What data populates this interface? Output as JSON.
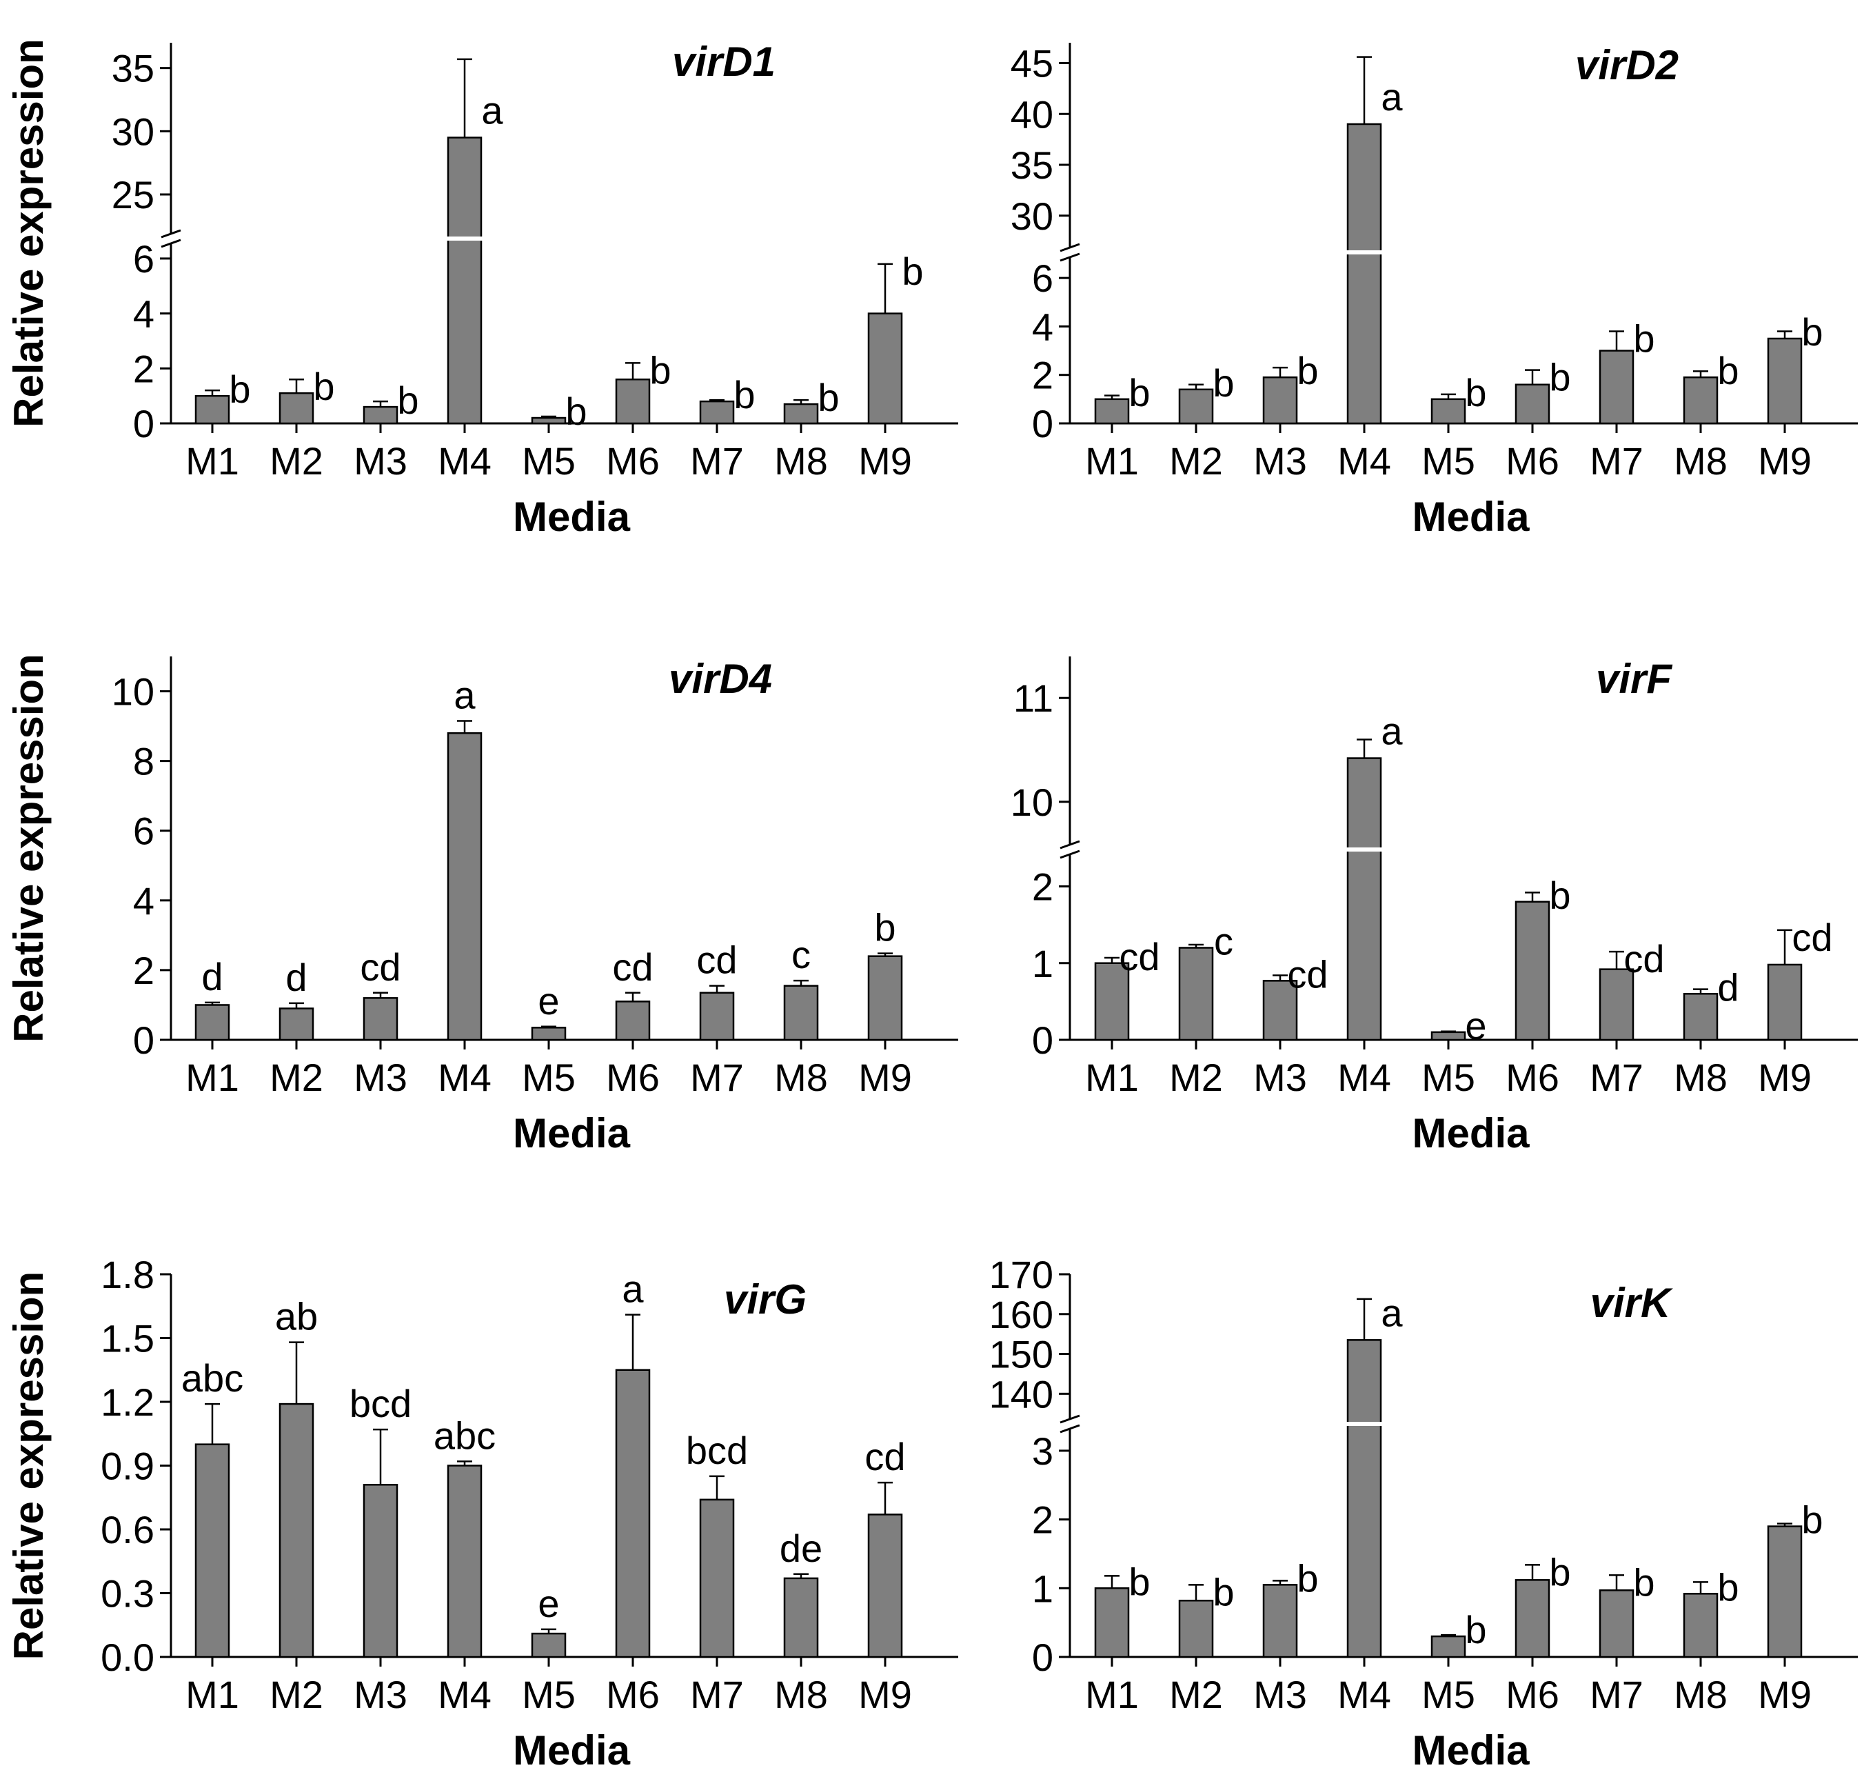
{
  "figure": {
    "x_axis_title": "Media",
    "y_axis_title": "Relative expression"
  },
  "chart_data": [
    {
      "type": "bar",
      "title": "virD1",
      "xlabel": "Media",
      "ylabel": "Relative expression",
      "categories": [
        "M1",
        "M2",
        "M3",
        "M4",
        "M5",
        "M6",
        "M7",
        "M8",
        "M9"
      ],
      "values": [
        1.0,
        1.1,
        0.6,
        29.5,
        0.2,
        1.6,
        0.8,
        0.7,
        4.0
      ],
      "errors": [
        0.2,
        0.5,
        0.2,
        6.2,
        0.05,
        0.6,
        0.05,
        0.15,
        1.8
      ],
      "significance": [
        "b",
        "b",
        "b",
        "a",
        "b",
        "b",
        "b",
        "b",
        "b"
      ],
      "ylim_lower": [
        0,
        6.5
      ],
      "ylim_upper": [
        22,
        37
      ],
      "yticks_lower": [
        0,
        2,
        4,
        6
      ],
      "yticks_upper": [
        25,
        30,
        35
      ],
      "y_axis_break": true
    },
    {
      "type": "bar",
      "title": "virD2",
      "xlabel": "Media",
      "ylabel": "",
      "categories": [
        "M1",
        "M2",
        "M3",
        "M4",
        "M5",
        "M6",
        "M7",
        "M8",
        "M9"
      ],
      "values": [
        1.0,
        1.4,
        1.9,
        39.0,
        1.0,
        1.6,
        3.0,
        1.9,
        3.5
      ],
      "errors": [
        0.15,
        0.2,
        0.4,
        6.6,
        0.2,
        0.6,
        0.8,
        0.25,
        0.3
      ],
      "significance": [
        "b",
        "b",
        "b",
        "a",
        "b",
        "b",
        "b",
        "b",
        "b"
      ],
      "ylim_lower": [
        0,
        6.8
      ],
      "ylim_upper": [
        27,
        47
      ],
      "yticks_lower": [
        0,
        2,
        4,
        6
      ],
      "yticks_upper": [
        30,
        35,
        40,
        45
      ],
      "y_axis_break": true
    },
    {
      "type": "bar",
      "title": "virD4",
      "xlabel": "Media",
      "ylabel": "Relative expression",
      "categories": [
        "M1",
        "M2",
        "M3",
        "M4",
        "M5",
        "M6",
        "M7",
        "M8",
        "M9"
      ],
      "values": [
        1.0,
        0.9,
        1.2,
        8.8,
        0.35,
        1.1,
        1.35,
        1.55,
        2.4
      ],
      "errors": [
        0.07,
        0.15,
        0.15,
        0.35,
        0.03,
        0.25,
        0.2,
        0.15,
        0.08
      ],
      "significance": [
        "d",
        "d",
        "cd",
        "a",
        "e",
        "cd",
        "cd",
        "c",
        "b"
      ],
      "ylim": [
        0,
        11
      ],
      "yticks": [
        0,
        2,
        4,
        6,
        8,
        10
      ],
      "y_axis_break": false
    },
    {
      "type": "bar",
      "title": "virF",
      "xlabel": "Media",
      "ylabel": "",
      "categories": [
        "M1",
        "M2",
        "M3",
        "M4",
        "M5",
        "M6",
        "M7",
        "M8",
        "M9"
      ],
      "values": [
        1.0,
        1.2,
        0.77,
        10.42,
        0.1,
        1.8,
        0.92,
        0.6,
        0.98
      ],
      "errors": [
        0.07,
        0.04,
        0.07,
        0.18,
        0.01,
        0.12,
        0.23,
        0.06,
        0.45
      ],
      "significance": [
        "cd",
        "c",
        "cd",
        "a",
        "e",
        "b",
        "cd",
        "d",
        "cd"
      ],
      "ylim_lower": [
        0,
        2.4
      ],
      "ylim_upper": [
        9.6,
        11.4
      ],
      "yticks_lower": [
        0,
        1,
        2
      ],
      "yticks_upper": [
        10,
        11
      ],
      "y_axis_break": true
    },
    {
      "type": "bar",
      "title": "virG",
      "xlabel": "Media",
      "ylabel": "Relative expression",
      "categories": [
        "M1",
        "M2",
        "M3",
        "M4",
        "M5",
        "M6",
        "M7",
        "M8",
        "M9"
      ],
      "values": [
        1.0,
        1.19,
        0.81,
        0.9,
        0.11,
        1.35,
        0.74,
        0.37,
        0.67
      ],
      "errors": [
        0.19,
        0.29,
        0.26,
        0.02,
        0.02,
        0.26,
        0.11,
        0.02,
        0.15
      ],
      "significance": [
        "abc",
        "ab",
        "bcd",
        "abc",
        "e",
        "a",
        "bcd",
        "de",
        "cd"
      ],
      "ylim": [
        0,
        1.8
      ],
      "yticks": [
        0.0,
        0.3,
        0.6,
        0.9,
        1.2,
        1.5,
        1.8
      ],
      "ytick_labels": [
        "0.0",
        "0.3",
        "0.6",
        "0.9",
        "1.2",
        "1.5",
        "1.8"
      ],
      "y_axis_break": false
    },
    {
      "type": "bar",
      "title": "virK",
      "xlabel": "Media",
      "ylabel": "",
      "categories": [
        "M1",
        "M2",
        "M3",
        "M4",
        "M5",
        "M6",
        "M7",
        "M8",
        "M9"
      ],
      "values": [
        1.0,
        0.82,
        1.05,
        153.5,
        0.3,
        1.12,
        0.97,
        0.92,
        1.9
      ],
      "errors": [
        0.18,
        0.23,
        0.06,
        10.3,
        0.02,
        0.22,
        0.22,
        0.17,
        0.04
      ],
      "significance": [
        "b",
        "b",
        "b",
        "a",
        "b",
        "b",
        "b",
        "b",
        "b"
      ],
      "ylim_lower": [
        0,
        3.3
      ],
      "ylim_upper": [
        134,
        170
      ],
      "yticks_lower": [
        0,
        1,
        2,
        3
      ],
      "yticks_upper": [
        140,
        150,
        160,
        170
      ],
      "y_axis_break": true
    }
  ]
}
